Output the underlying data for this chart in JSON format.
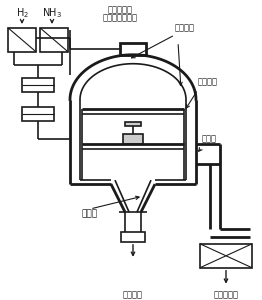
{
  "bg_color": "#ffffff",
  "line_color": "#1a1a1a",
  "lw_thin": 0.8,
  "lw_med": 1.2,
  "lw_thick": 2.0,
  "labels": {
    "H2": "H$_2$",
    "NH3": "NH$_3$",
    "mass_flow1": "マスフロー",
    "mass_flow2": "コントローラー",
    "treatment": "処理部材",
    "dc_electrode": "直流電極",
    "outer_furnace": "外熱炉",
    "nozzle": "ノズル",
    "dc_power": "直流電源",
    "vacuum_pump": "真空ポンプ"
  }
}
